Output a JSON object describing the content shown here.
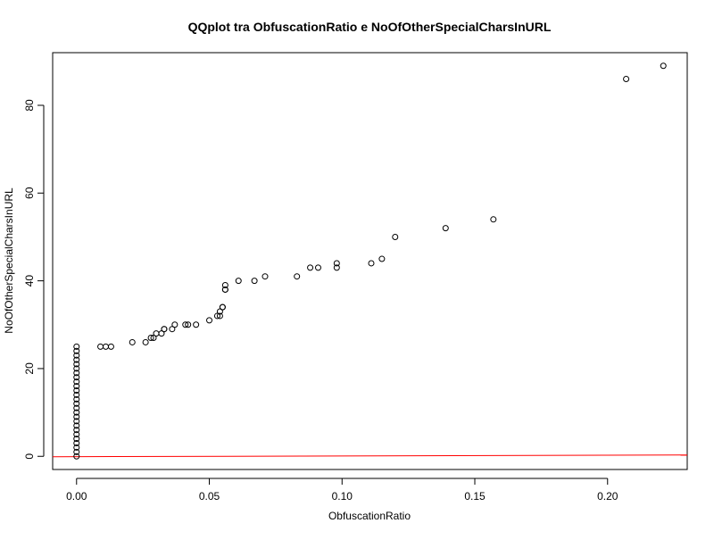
{
  "chart_data": {
    "type": "scatter",
    "title": "QQplot tra ObfuscationRatio e NoOfOtherSpecialCharsInURL",
    "xlabel": "ObfuscationRatio",
    "ylabel": "NoOfOtherSpecialCharsInURL",
    "xlim": [
      -0.009,
      0.23
    ],
    "ylim": [
      -3,
      92
    ],
    "xticks": [
      0.0,
      0.05,
      0.1,
      0.15,
      0.2
    ],
    "xtick_labels": [
      "0.00",
      "0.05",
      "0.10",
      "0.15",
      "0.20"
    ],
    "yticks": [
      0,
      20,
      40,
      60,
      80
    ],
    "ytick_labels": [
      "0",
      "20",
      "40",
      "60",
      "80"
    ],
    "grid": false,
    "legend": "none",
    "point_color": "#000000",
    "reference_line": {
      "color": "#ff0000",
      "x": [
        -0.009,
        0.23
      ],
      "y": [
        -0.1,
        0.3
      ]
    },
    "x": [
      0,
      0,
      0,
      0,
      0,
      0,
      0,
      0,
      0,
      0,
      0,
      0,
      0,
      0,
      0,
      0,
      0,
      0,
      0,
      0,
      0,
      0,
      0,
      0,
      0,
      0,
      0.009,
      0.011,
      0.013,
      0.021,
      0.026,
      0.028,
      0.029,
      0.03,
      0.032,
      0.033,
      0.033,
      0.036,
      0.037,
      0.041,
      0.042,
      0.045,
      0.05,
      0.053,
      0.054,
      0.054,
      0.055,
      0.055,
      0.056,
      0.056,
      0.056,
      0.061,
      0.067,
      0.071,
      0.083,
      0.088,
      0.091,
      0.098,
      0.098,
      0.111,
      0.115,
      0.12,
      0.139,
      0.157,
      0.207,
      0.221
    ],
    "y": [
      0,
      1,
      2,
      3,
      4,
      5,
      6,
      7,
      8,
      9,
      10,
      11,
      12,
      13,
      14,
      15,
      16,
      17,
      18,
      19,
      20,
      21,
      22,
      23,
      24,
      25,
      25,
      25,
      25,
      26,
      26,
      27,
      27,
      28,
      28,
      29,
      29,
      29,
      30,
      30,
      30,
      30,
      31,
      32,
      32,
      33,
      34,
      34,
      38,
      38,
      39,
      40,
      40,
      41,
      41,
      43,
      43,
      43,
      44,
      44,
      45,
      50,
      52,
      54,
      86,
      89
    ]
  }
}
